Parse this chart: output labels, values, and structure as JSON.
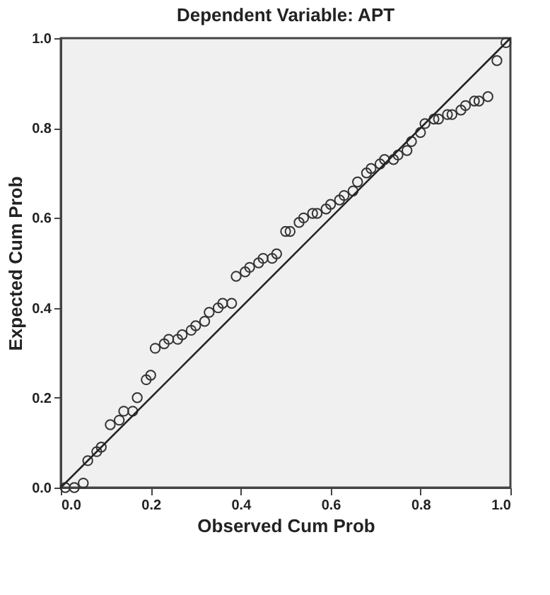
{
  "chart_data": {
    "type": "scatter",
    "title": "Dependent Variable: APT",
    "xlabel": "Observed Cum Prob",
    "ylabel": "Expected Cum Prob",
    "xlim": [
      0,
      1
    ],
    "ylim": [
      0,
      1
    ],
    "xticks": [
      {
        "value": 0,
        "label": "0.0"
      },
      {
        "value": 0.2,
        "label": "0.2"
      },
      {
        "value": 0.4,
        "label": "0.4"
      },
      {
        "value": 0.6,
        "label": "0.6"
      },
      {
        "value": 0.8,
        "label": "0.8"
      },
      {
        "value": 1,
        "label": "1.0"
      }
    ],
    "yticks": [
      {
        "value": 0,
        "label": "0.0"
      },
      {
        "value": 0.2,
        "label": "0.2"
      },
      {
        "value": 0.4,
        "label": "0.4"
      },
      {
        "value": 0.6,
        "label": "0.6"
      },
      {
        "value": 0.8,
        "label": "0.8"
      },
      {
        "value": 1,
        "label": "1.0"
      }
    ],
    "grid": false,
    "legend": false,
    "series": [
      {
        "marker": "circle",
        "color": "#333333",
        "x": [
          0.01,
          0.03,
          0.05,
          0.06,
          0.08,
          0.09,
          0.11,
          0.13,
          0.14,
          0.16,
          0.17,
          0.19,
          0.2,
          0.21,
          0.23,
          0.24,
          0.26,
          0.27,
          0.29,
          0.3,
          0.32,
          0.33,
          0.35,
          0.36,
          0.38,
          0.39,
          0.41,
          0.42,
          0.44,
          0.45,
          0.47,
          0.48,
          0.5,
          0.51,
          0.53,
          0.54,
          0.56,
          0.57,
          0.59,
          0.6,
          0.62,
          0.63,
          0.65,
          0.66,
          0.68,
          0.69,
          0.71,
          0.72,
          0.74,
          0.75,
          0.77,
          0.78,
          0.8,
          0.81,
          0.83,
          0.84,
          0.86,
          0.87,
          0.89,
          0.9,
          0.92,
          0.93,
          0.95,
          0.97,
          0.99
        ],
        "values": [
          0.0,
          0.0,
          0.01,
          0.06,
          0.08,
          0.09,
          0.14,
          0.15,
          0.17,
          0.17,
          0.2,
          0.24,
          0.25,
          0.31,
          0.32,
          0.33,
          0.33,
          0.34,
          0.35,
          0.36,
          0.37,
          0.39,
          0.4,
          0.41,
          0.41,
          0.47,
          0.48,
          0.49,
          0.5,
          0.51,
          0.51,
          0.52,
          0.57,
          0.57,
          0.59,
          0.6,
          0.61,
          0.61,
          0.62,
          0.63,
          0.64,
          0.65,
          0.66,
          0.68,
          0.7,
          0.71,
          0.72,
          0.73,
          0.73,
          0.74,
          0.75,
          0.77,
          0.79,
          0.81,
          0.82,
          0.82,
          0.83,
          0.83,
          0.84,
          0.85,
          0.86,
          0.86,
          0.87,
          0.95,
          0.99
        ]
      },
      {
        "type": "line",
        "marker": "none",
        "line_style": "solid",
        "color": "#222222",
        "x": [
          0,
          1
        ],
        "values": [
          0,
          1
        ]
      }
    ]
  }
}
